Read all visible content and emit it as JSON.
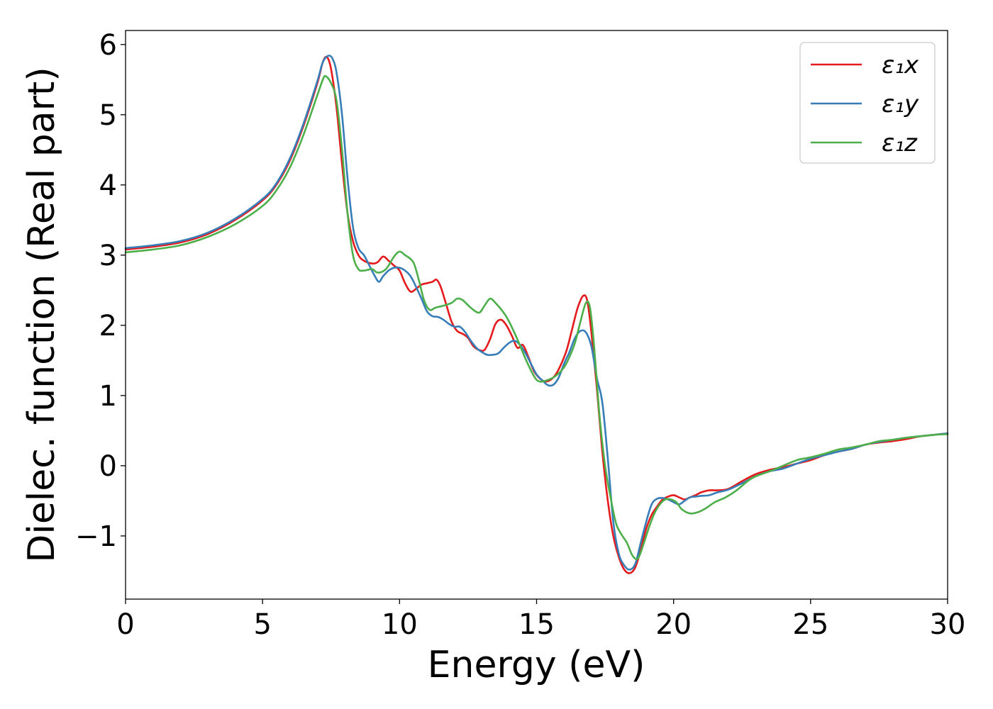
{
  "chart_data": {
    "type": "line",
    "title": "",
    "xlabel": "Energy (eV)",
    "ylabel": "Dielec. function (Real part)",
    "xlim": [
      0,
      30
    ],
    "ylim": [
      -1.9,
      6.2
    ],
    "xticks": [
      0,
      5,
      10,
      15,
      20,
      25,
      30
    ],
    "xtick_labels": [
      "0",
      "5",
      "10",
      "15",
      "20",
      "25",
      "30"
    ],
    "yticks": [
      -1,
      0,
      1,
      2,
      3,
      4,
      5,
      6
    ],
    "ytick_labels": [
      "−1",
      "0",
      "1",
      "2",
      "3",
      "4",
      "5",
      "6"
    ],
    "grid": false,
    "legend_position": "top-right",
    "series": [
      {
        "name": "ε₁x",
        "color": "#e41a1c",
        "points": [
          [
            0,
            3.08
          ],
          [
            1,
            3.12
          ],
          [
            2,
            3.18
          ],
          [
            3,
            3.3
          ],
          [
            4,
            3.5
          ],
          [
            5,
            3.78
          ],
          [
            5.5,
            4.0
          ],
          [
            6,
            4.35
          ],
          [
            6.5,
            4.85
          ],
          [
            7,
            5.45
          ],
          [
            7.2,
            5.75
          ],
          [
            7.35,
            5.82
          ],
          [
            7.5,
            5.65
          ],
          [
            7.7,
            5.1
          ],
          [
            7.9,
            4.3
          ],
          [
            8.1,
            3.6
          ],
          [
            8.3,
            3.2
          ],
          [
            8.5,
            3.0
          ],
          [
            8.7,
            2.92
          ],
          [
            9.0,
            2.88
          ],
          [
            9.2,
            2.9
          ],
          [
            9.4,
            2.98
          ],
          [
            9.6,
            2.92
          ],
          [
            9.8,
            2.85
          ],
          [
            10.0,
            2.78
          ],
          [
            10.2,
            2.6
          ],
          [
            10.4,
            2.48
          ],
          [
            10.6,
            2.52
          ],
          [
            10.8,
            2.58
          ],
          [
            11.0,
            2.6
          ],
          [
            11.2,
            2.62
          ],
          [
            11.35,
            2.65
          ],
          [
            11.5,
            2.55
          ],
          [
            11.7,
            2.3
          ],
          [
            11.9,
            2.05
          ],
          [
            12.1,
            1.92
          ],
          [
            12.3,
            1.88
          ],
          [
            12.5,
            1.82
          ],
          [
            12.7,
            1.7
          ],
          [
            12.9,
            1.65
          ],
          [
            13.1,
            1.65
          ],
          [
            13.3,
            1.8
          ],
          [
            13.5,
            2.02
          ],
          [
            13.7,
            2.08
          ],
          [
            13.9,
            2.0
          ],
          [
            14.1,
            1.85
          ],
          [
            14.3,
            1.68
          ],
          [
            14.5,
            1.72
          ],
          [
            14.7,
            1.55
          ],
          [
            14.9,
            1.35
          ],
          [
            15.1,
            1.25
          ],
          [
            15.3,
            1.2
          ],
          [
            15.5,
            1.22
          ],
          [
            15.7,
            1.3
          ],
          [
            15.9,
            1.45
          ],
          [
            16.1,
            1.65
          ],
          [
            16.3,
            1.95
          ],
          [
            16.5,
            2.25
          ],
          [
            16.7,
            2.42
          ],
          [
            16.85,
            2.35
          ],
          [
            17.0,
            1.9
          ],
          [
            17.2,
            1.1
          ],
          [
            17.4,
            0.2
          ],
          [
            17.6,
            -0.5
          ],
          [
            17.8,
            -1.0
          ],
          [
            18.0,
            -1.3
          ],
          [
            18.2,
            -1.48
          ],
          [
            18.4,
            -1.53
          ],
          [
            18.6,
            -1.45
          ],
          [
            18.8,
            -1.2
          ],
          [
            19.0,
            -0.9
          ],
          [
            19.2,
            -0.7
          ],
          [
            19.4,
            -0.58
          ],
          [
            19.6,
            -0.48
          ],
          [
            19.8,
            -0.44
          ],
          [
            20.0,
            -0.42
          ],
          [
            20.2,
            -0.45
          ],
          [
            20.4,
            -0.48
          ],
          [
            20.6,
            -0.45
          ],
          [
            20.8,
            -0.42
          ],
          [
            21.0,
            -0.38
          ],
          [
            21.3,
            -0.35
          ],
          [
            21.6,
            -0.35
          ],
          [
            22.0,
            -0.33
          ],
          [
            22.5,
            -0.22
          ],
          [
            23,
            -0.12
          ],
          [
            23.5,
            -0.06
          ],
          [
            24,
            -0.02
          ],
          [
            24.5,
            0.03
          ],
          [
            25,
            0.08
          ],
          [
            25.5,
            0.15
          ],
          [
            26,
            0.2
          ],
          [
            26.5,
            0.24
          ],
          [
            27,
            0.3
          ],
          [
            27.5,
            0.33
          ],
          [
            28,
            0.35
          ],
          [
            28.5,
            0.38
          ],
          [
            29,
            0.42
          ],
          [
            29.5,
            0.44
          ],
          [
            30,
            0.46
          ]
        ]
      },
      {
        "name": "ε₁y",
        "color": "#377eb8",
        "points": [
          [
            0,
            3.1
          ],
          [
            1,
            3.14
          ],
          [
            2,
            3.2
          ],
          [
            3,
            3.32
          ],
          [
            4,
            3.52
          ],
          [
            5,
            3.8
          ],
          [
            5.5,
            4.02
          ],
          [
            6,
            4.38
          ],
          [
            6.5,
            4.88
          ],
          [
            7,
            5.48
          ],
          [
            7.2,
            5.75
          ],
          [
            7.4,
            5.84
          ],
          [
            7.55,
            5.8
          ],
          [
            7.7,
            5.6
          ],
          [
            7.9,
            5.0
          ],
          [
            8.1,
            4.1
          ],
          [
            8.3,
            3.4
          ],
          [
            8.5,
            3.1
          ],
          [
            8.7,
            3.0
          ],
          [
            8.9,
            2.85
          ],
          [
            9.1,
            2.7
          ],
          [
            9.25,
            2.62
          ],
          [
            9.4,
            2.7
          ],
          [
            9.6,
            2.78
          ],
          [
            9.8,
            2.82
          ],
          [
            10.0,
            2.82
          ],
          [
            10.2,
            2.78
          ],
          [
            10.4,
            2.7
          ],
          [
            10.6,
            2.55
          ],
          [
            10.8,
            2.38
          ],
          [
            11.0,
            2.2
          ],
          [
            11.2,
            2.13
          ],
          [
            11.4,
            2.12
          ],
          [
            11.6,
            2.08
          ],
          [
            11.8,
            2.02
          ],
          [
            12.0,
            1.98
          ],
          [
            12.2,
            1.98
          ],
          [
            12.4,
            1.9
          ],
          [
            12.6,
            1.78
          ],
          [
            12.8,
            1.68
          ],
          [
            13.0,
            1.62
          ],
          [
            13.2,
            1.58
          ],
          [
            13.4,
            1.58
          ],
          [
            13.6,
            1.6
          ],
          [
            13.8,
            1.68
          ],
          [
            14.0,
            1.75
          ],
          [
            14.2,
            1.78
          ],
          [
            14.4,
            1.72
          ],
          [
            14.6,
            1.6
          ],
          [
            14.8,
            1.45
          ],
          [
            15.0,
            1.3
          ],
          [
            15.2,
            1.22
          ],
          [
            15.4,
            1.15
          ],
          [
            15.6,
            1.15
          ],
          [
            15.8,
            1.25
          ],
          [
            16.0,
            1.45
          ],
          [
            16.2,
            1.62
          ],
          [
            16.4,
            1.82
          ],
          [
            16.6,
            1.92
          ],
          [
            16.8,
            1.9
          ],
          [
            17.0,
            1.7
          ],
          [
            17.2,
            1.25
          ],
          [
            17.4,
            0.9
          ],
          [
            17.6,
            0.1
          ],
          [
            17.8,
            -0.8
          ],
          [
            18.0,
            -1.25
          ],
          [
            18.2,
            -1.42
          ],
          [
            18.4,
            -1.48
          ],
          [
            18.6,
            -1.4
          ],
          [
            18.8,
            -1.1
          ],
          [
            19.0,
            -0.8
          ],
          [
            19.2,
            -0.55
          ],
          [
            19.4,
            -0.47
          ],
          [
            19.6,
            -0.46
          ],
          [
            19.8,
            -0.48
          ],
          [
            20.0,
            -0.52
          ],
          [
            20.2,
            -0.55
          ],
          [
            20.4,
            -0.5
          ],
          [
            20.6,
            -0.45
          ],
          [
            20.8,
            -0.44
          ],
          [
            21.0,
            -0.43
          ],
          [
            21.3,
            -0.42
          ],
          [
            21.6,
            -0.38
          ],
          [
            22.0,
            -0.34
          ],
          [
            22.5,
            -0.25
          ],
          [
            23,
            -0.15
          ],
          [
            23.5,
            -0.08
          ],
          [
            24,
            -0.04
          ],
          [
            24.5,
            0.03
          ],
          [
            25,
            0.1
          ],
          [
            25.5,
            0.15
          ],
          [
            26,
            0.2
          ],
          [
            26.5,
            0.24
          ],
          [
            27,
            0.3
          ],
          [
            27.5,
            0.34
          ],
          [
            28,
            0.37
          ],
          [
            28.5,
            0.4
          ],
          [
            29,
            0.42
          ],
          [
            29.5,
            0.44
          ],
          [
            30,
            0.46
          ]
        ]
      },
      {
        "name": "ε₁z",
        "color": "#4daf4a",
        "points": [
          [
            0,
            3.04
          ],
          [
            1,
            3.08
          ],
          [
            2,
            3.14
          ],
          [
            3,
            3.26
          ],
          [
            4,
            3.44
          ],
          [
            5,
            3.7
          ],
          [
            5.5,
            3.92
          ],
          [
            6,
            4.25
          ],
          [
            6.5,
            4.72
          ],
          [
            7,
            5.28
          ],
          [
            7.2,
            5.5
          ],
          [
            7.3,
            5.55
          ],
          [
            7.5,
            5.45
          ],
          [
            7.7,
            5.2
          ],
          [
            7.9,
            4.5
          ],
          [
            8.1,
            3.6
          ],
          [
            8.3,
            3.0
          ],
          [
            8.5,
            2.8
          ],
          [
            8.7,
            2.78
          ],
          [
            9.0,
            2.8
          ],
          [
            9.2,
            2.75
          ],
          [
            9.5,
            2.8
          ],
          [
            9.8,
            2.98
          ],
          [
            10.0,
            3.05
          ],
          [
            10.2,
            3.0
          ],
          [
            10.5,
            2.9
          ],
          [
            10.7,
            2.65
          ],
          [
            10.9,
            2.35
          ],
          [
            11.1,
            2.22
          ],
          [
            11.3,
            2.25
          ],
          [
            11.6,
            2.28
          ],
          [
            11.9,
            2.32
          ],
          [
            12.1,
            2.38
          ],
          [
            12.3,
            2.36
          ],
          [
            12.6,
            2.25
          ],
          [
            12.9,
            2.18
          ],
          [
            13.1,
            2.28
          ],
          [
            13.3,
            2.38
          ],
          [
            13.5,
            2.32
          ],
          [
            13.8,
            2.18
          ],
          [
            14.0,
            2.05
          ],
          [
            14.3,
            1.8
          ],
          [
            14.6,
            1.52
          ],
          [
            14.9,
            1.28
          ],
          [
            15.1,
            1.2
          ],
          [
            15.4,
            1.22
          ],
          [
            15.7,
            1.28
          ],
          [
            16.0,
            1.4
          ],
          [
            16.2,
            1.55
          ],
          [
            16.4,
            1.75
          ],
          [
            16.6,
            2.05
          ],
          [
            16.8,
            2.32
          ],
          [
            16.95,
            2.25
          ],
          [
            17.1,
            1.7
          ],
          [
            17.3,
            0.7
          ],
          [
            17.5,
            0.0
          ],
          [
            17.7,
            -0.45
          ],
          [
            17.9,
            -0.82
          ],
          [
            18.1,
            -0.98
          ],
          [
            18.3,
            -1.1
          ],
          [
            18.5,
            -1.28
          ],
          [
            18.7,
            -1.32
          ],
          [
            18.9,
            -1.12
          ],
          [
            19.1,
            -0.88
          ],
          [
            19.3,
            -0.68
          ],
          [
            19.5,
            -0.55
          ],
          [
            19.7,
            -0.48
          ],
          [
            19.9,
            -0.48
          ],
          [
            20.1,
            -0.52
          ],
          [
            20.3,
            -0.62
          ],
          [
            20.6,
            -0.68
          ],
          [
            20.9,
            -0.66
          ],
          [
            21.2,
            -0.6
          ],
          [
            21.5,
            -0.52
          ],
          [
            21.9,
            -0.45
          ],
          [
            22.3,
            -0.35
          ],
          [
            22.7,
            -0.22
          ],
          [
            23,
            -0.15
          ],
          [
            23.5,
            -0.08
          ],
          [
            24,
            0.0
          ],
          [
            24.5,
            0.08
          ],
          [
            25,
            0.12
          ],
          [
            25.5,
            0.17
          ],
          [
            26,
            0.23
          ],
          [
            26.5,
            0.26
          ],
          [
            27,
            0.3
          ],
          [
            27.5,
            0.35
          ],
          [
            28,
            0.37
          ],
          [
            28.5,
            0.4
          ],
          [
            29,
            0.42
          ],
          [
            29.5,
            0.44
          ],
          [
            30,
            0.45
          ]
        ]
      }
    ]
  }
}
